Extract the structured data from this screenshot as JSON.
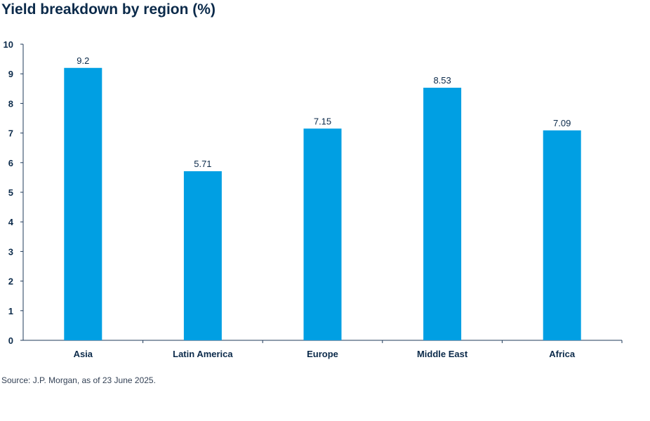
{
  "title": "Yield breakdown by region (%)",
  "source": "Source: J.P. Morgan, as of 23 June 2025.",
  "colors": {
    "bar": "#009fe3",
    "axis": "#1f3a5a",
    "text": "#0b2a4a"
  },
  "chart_data": {
    "type": "bar",
    "title": "Yield breakdown by region (%)",
    "xlabel": "",
    "ylabel": "",
    "categories": [
      "Asia",
      "Latin America",
      "Europe",
      "Middle East",
      "Africa"
    ],
    "values": [
      9.2,
      5.71,
      7.15,
      8.53,
      7.09
    ],
    "value_labels": [
      "9.2",
      "5.71",
      "7.15",
      "8.53",
      "7.09"
    ],
    "ylim": [
      0,
      10
    ],
    "yticks": [
      "0",
      "1",
      "2",
      "3",
      "4",
      "5",
      "6",
      "7",
      "8",
      "9",
      "10"
    ],
    "grid": false,
    "legend": "none"
  }
}
